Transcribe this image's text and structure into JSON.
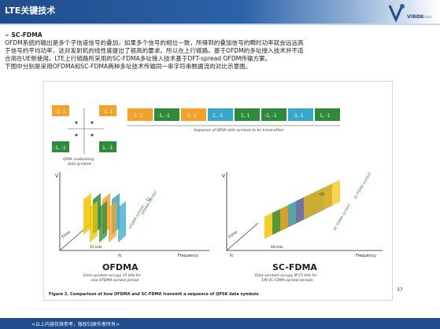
{
  "header": {
    "title": "LTE关键技术",
    "logo_text": "VIBOX",
    "logo_sub": "solutions"
  },
  "content": {
    "bullet_title": "SC-FDMA",
    "lines": [
      "OFDM系统的输出是多个子信道信号的叠加，如果多个信号的相位一致，所得到的叠加信号的瞬时功率就会远远高",
      "于信号的平均功率，这对发射机的线性度提出了很高的要求。所以在上行链路，基于OFDM的多址接入技术并不适",
      "合用在UE侧使用。LTE上行链路所采用的SC-FDMA多址接入技术基于DFT-spread OFDM传输方案。",
      "下图中分别是采用OFDMA和SC-FDMA两种多址技术传输同一串字符串数据流的对比示意图。"
    ]
  },
  "figure": {
    "qpsk": {
      "tl": "-1, 1",
      "tr": "1, 1",
      "bl": "-1, -1",
      "br": "1, -1",
      "caption1": "QPSK modulating",
      "caption2": "data symbols"
    },
    "sequence": [
      "1, 1",
      "-1, -1",
      "-1, 1",
      "1, -1",
      "1, 1",
      "-1, -1",
      "-1, 1",
      "1, -1"
    ],
    "sequence_caption": "Sequence of QPSK data symbols to be transmitted",
    "left": {
      "title": "OFDMA",
      "sub1": "Data symbols occupy 15 kHz for",
      "sub2": "one OFDMA symbol period",
      "axis_v": "V",
      "axis_freq": "Frequency",
      "axis_time": "Time",
      "fc": "fc",
      "bw": "15 kHz",
      "cp": "CP",
      "sym1": "OFDMA symbol",
      "sym2": "OFDMA symbol"
    },
    "right": {
      "title": "SC-FDMA",
      "sub1": "Data symbols occupy N*15 kHz for",
      "sub2": "1/N SC-FDMA symbol periods",
      "axis_v": "V",
      "axis_freq": "Frequency",
      "axis_time": "Time",
      "fc": "fc",
      "bw": "60 kHz",
      "cp": "CP",
      "sym1": "SC-FDMA symbol",
      "sym2": "SC-FDMA symbol"
    },
    "caption": "Figure 2. Comparison of how OFDMA and SC-FDMA transmit a sequence of QPSK data symbols"
  },
  "page_number": "37",
  "footer": {
    "text": "<以上内容仅供参考，版权归原作者所有>"
  },
  "colors": {
    "header": "#1f4d8c",
    "symbol_box": "#f2a22a",
    "green_box": "#2f8a3a",
    "purple": "#7a62a6",
    "cyan": "#3aa6c8",
    "yellow": "#f2c400"
  }
}
